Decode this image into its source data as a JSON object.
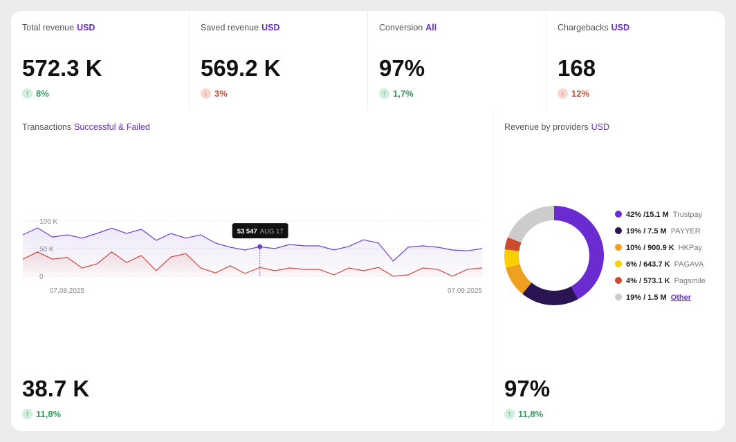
{
  "kpis": [
    {
      "label": "Total revenue",
      "unit": "USD",
      "value": "572.3 K",
      "change": "8%",
      "trend": "up"
    },
    {
      "label": "Saved revenue",
      "unit": "USD",
      "value": "569.2 K",
      "change": "3%",
      "trend": "down"
    },
    {
      "label": "Conversion",
      "unit": "All",
      "value": "97%",
      "change": "1,7%",
      "trend": "up"
    },
    {
      "label": "Chargebacks",
      "unit": "USD",
      "value": "168",
      "change": "12%",
      "trend": "down"
    }
  ],
  "transactions_summary": {
    "value": "38.7 K",
    "change": "11,8%",
    "trend": "up"
  },
  "providers_summary": {
    "value": "97%",
    "change": "11,8%",
    "trend": "up"
  },
  "chart_data": [
    {
      "type": "line",
      "title": "Transactions",
      "subtitle": "Successful & Failed",
      "categories": [
        "07.08.2025",
        null,
        null,
        null,
        null,
        null,
        null,
        null,
        null,
        null,
        null,
        null,
        null,
        null,
        null,
        null,
        null,
        null,
        null,
        null,
        null,
        null,
        null,
        null,
        null,
        null,
        null,
        null,
        null,
        null,
        null,
        "07.09.2025"
      ],
      "ylim": [
        0,
        100000
      ],
      "yticks": [
        0,
        {
          "value": 50000,
          "label": "50 K"
        },
        {
          "value": 100000,
          "label": "100 K"
        }
      ],
      "grid": true,
      "series": [
        {
          "name": "Successful",
          "color": "#6c3fc9",
          "values": [
            75000,
            87500,
            71000,
            75000,
            69000,
            77500,
            87000,
            77500,
            85000,
            65000,
            77500,
            69000,
            75000,
            60000,
            52500,
            47500,
            53547,
            50000,
            57500,
            55000,
            55000,
            47500,
            54000,
            66000,
            60000,
            27500,
            52500,
            55000,
            52500,
            47500,
            46000,
            50000
          ]
        },
        {
          "name": "Failed",
          "color": "#d0473a",
          "values": [
            31000,
            44000,
            31000,
            34000,
            15000,
            22500,
            44000,
            25000,
            37500,
            10000,
            35000,
            41000,
            15000,
            6000,
            19000,
            5000,
            16000,
            10000,
            15000,
            12500,
            12500,
            2500,
            15000,
            10000,
            16000,
            0,
            2500,
            15000,
            12500,
            0,
            12500,
            15000
          ]
        }
      ],
      "annotation": {
        "text": "53 547",
        "date": "AUG 17",
        "value": 53547
      }
    },
    {
      "type": "pie",
      "title": "Revenue by providers",
      "subtitle": "USD",
      "donut": true,
      "categories": [
        "Trustpay",
        "PAYYER",
        "HKPay",
        "PAGAVA",
        "Pagsmile",
        "Other"
      ],
      "values": [
        42,
        19,
        10,
        6,
        4,
        19
      ],
      "value_labels": [
        "42% /15.1 M",
        "19% / 7.5 M",
        "10% / 900.9 K",
        "6% / 643.7 K",
        "4% / 573.1 K",
        "19% / 1.5 M"
      ],
      "colors": [
        "#6a2bd0",
        "#2a1552",
        "#f0a020",
        "#f9cf00",
        "#cc4a2e",
        "#cccccc"
      ],
      "links": [
        false,
        false,
        false,
        false,
        false,
        true
      ]
    }
  ]
}
